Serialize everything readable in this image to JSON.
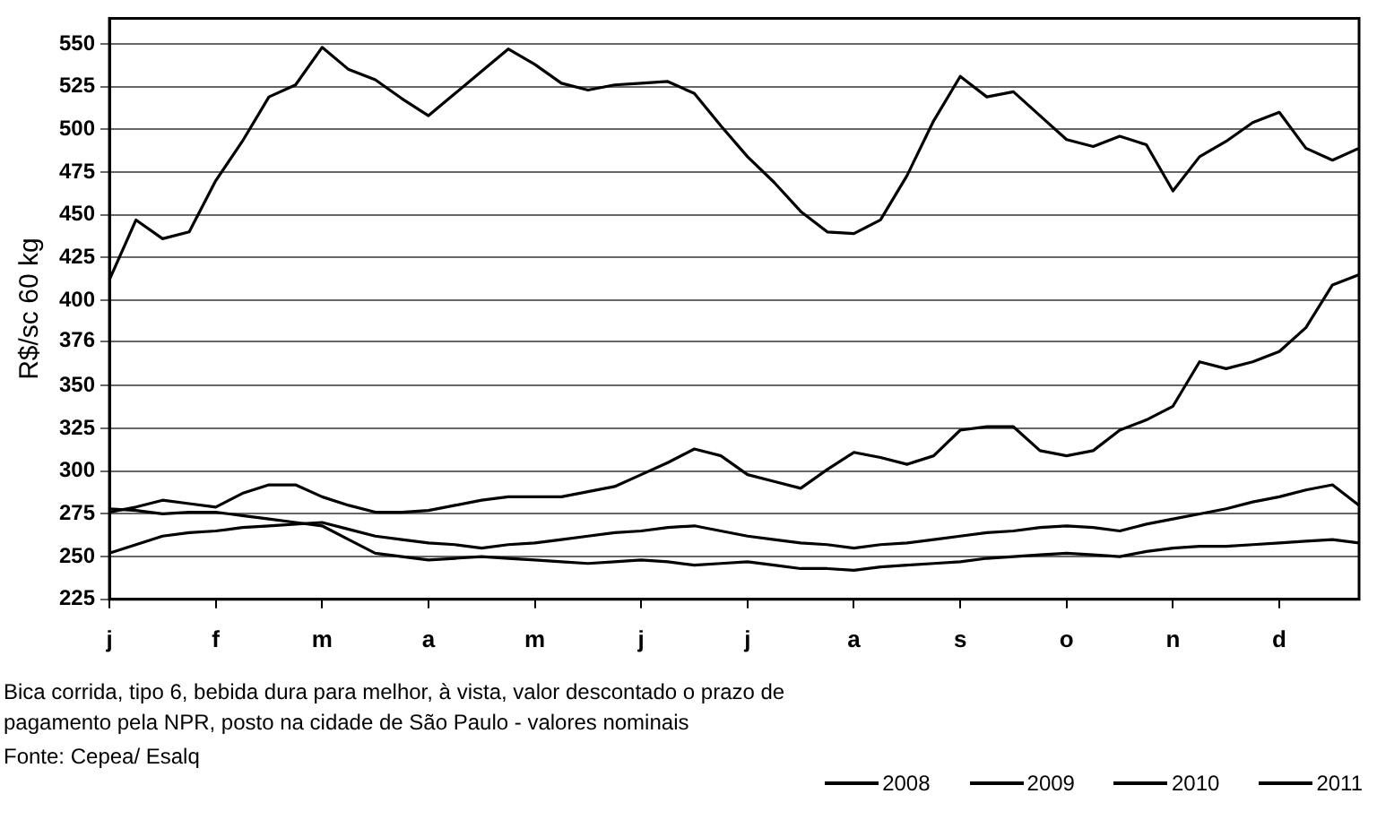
{
  "chart_data": {
    "type": "line",
    "ylabel": "R$/sc 60 kg",
    "categories": [
      "j",
      null,
      null,
      null,
      "f",
      null,
      null,
      null,
      "m",
      null,
      null,
      null,
      "a",
      null,
      null,
      null,
      "m",
      null,
      null,
      null,
      "j",
      null,
      null,
      null,
      "j",
      null,
      null,
      null,
      "a",
      null,
      null,
      null,
      "s",
      null,
      null,
      null,
      "o",
      null,
      null,
      null,
      "n",
      null,
      null,
      null,
      "d",
      null,
      null,
      null
    ],
    "ylim": [
      225,
      565
    ],
    "yticks": [
      225,
      250,
      275,
      300,
      325,
      350,
      376,
      400,
      425,
      450,
      475,
      500,
      525,
      550
    ],
    "grid": "y",
    "legend": "bottom right",
    "marker": "none",
    "line_style": "solid",
    "annotations": [
      "Bica corrida, tipo 6, bebida dura para melhor, à vista, valor descontado o prazo de pagamento pela NPR, posto na cidade de São Paulo - valores nominais",
      "Fonte: Cepea/ Esalq"
    ],
    "series": [
      {
        "name": "2008",
        "color": "#000000",
        "values": [
          278,
          277,
          275,
          276,
          276,
          274,
          272,
          270,
          268,
          260,
          252,
          250,
          248,
          249,
          250,
          249,
          248,
          247,
          246,
          247,
          248,
          247,
          245,
          246,
          247,
          245,
          243,
          243,
          242,
          244,
          245,
          246,
          247,
          249,
          250,
          251,
          252,
          251,
          250,
          253,
          255,
          256,
          256,
          257,
          258,
          259,
          260,
          258
        ]
      },
      {
        "name": "2009",
        "color": "#000000",
        "values": [
          252,
          257,
          262,
          264,
          265,
          267,
          268,
          269,
          270,
          266,
          262,
          260,
          258,
          257,
          255,
          257,
          258,
          260,
          262,
          264,
          265,
          267,
          268,
          265,
          262,
          260,
          258,
          257,
          255,
          257,
          258,
          260,
          262,
          264,
          265,
          267,
          268,
          267,
          265,
          269,
          272,
          275,
          278,
          282,
          285,
          289,
          292,
          280
        ]
      },
      {
        "name": "2010",
        "color": "#000000",
        "values": [
          276,
          279,
          283,
          281,
          279,
          287,
          292,
          292,
          285,
          280,
          276,
          276,
          277,
          280,
          283,
          285,
          285,
          285,
          288,
          291,
          298,
          305,
          313,
          309,
          298,
          294,
          290,
          301,
          311,
          308,
          304,
          309,
          324,
          326,
          326,
          312,
          309,
          312,
          324,
          330,
          338,
          364,
          360,
          364,
          370,
          384,
          409,
          415
        ]
      },
      {
        "name": "2011",
        "color": "#000000",
        "values": [
          412,
          447,
          436,
          440,
          470,
          493,
          519,
          526,
          548,
          535,
          529,
          518,
          508,
          521,
          534,
          547,
          538,
          527,
          523,
          526,
          527,
          528,
          521,
          502,
          484,
          469,
          452,
          440,
          439,
          447,
          473,
          505,
          531,
          519,
          522,
          508,
          494,
          490,
          496,
          491,
          464,
          484,
          493,
          504,
          510,
          489,
          482,
          489
        ]
      }
    ]
  }
}
